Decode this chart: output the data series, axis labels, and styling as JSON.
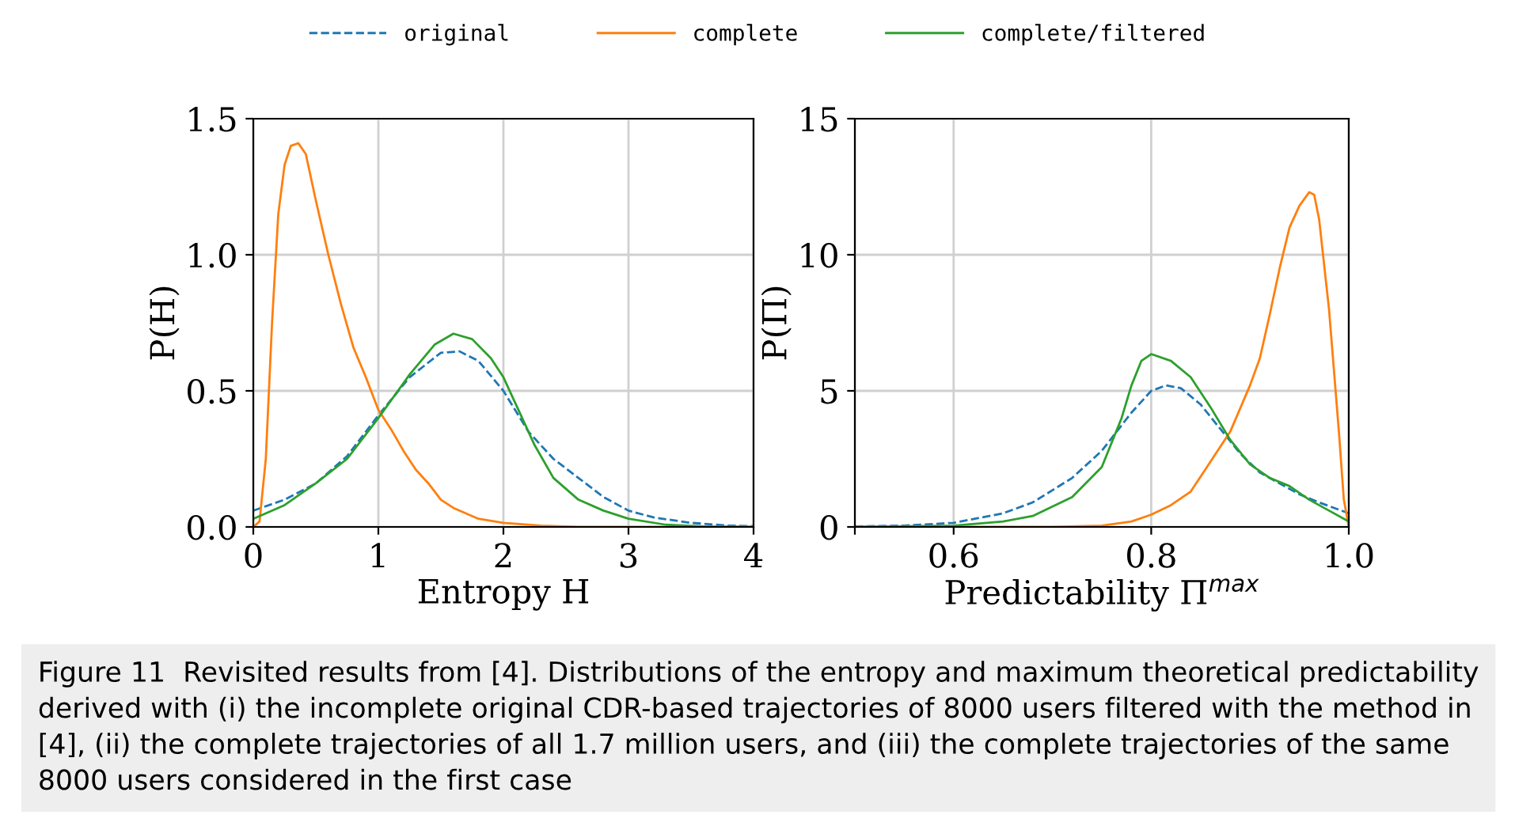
{
  "chart_data": [
    {
      "type": "line",
      "xlabel": "Entropy H",
      "ylabel": "P(H)",
      "xlim": [
        0,
        4
      ],
      "ylim": [
        0,
        1.5
      ],
      "xticks": [
        0,
        1,
        2,
        3,
        4
      ],
      "yticks": [
        {
          "value": 0,
          "label": "0.0"
        },
        {
          "value": 0.5,
          "label": "0.5"
        },
        {
          "value": 1,
          "label": "1.0"
        },
        {
          "value": 1.5,
          "label": "1.5"
        }
      ],
      "grid": true,
      "legend": "top",
      "annotations": [
        "Figure 11  Revisited results from [4]. Distributions of the entropy and maximum theoretical predictability derived with (i) the incomplete original CDR-based trajectories of 8000 users filtered with the method in [4], (ii) the complete trajectories of all 1.7 million users, and (iii) the complete trajectories of the same 8000 users considered in the first case"
      ],
      "series": [
        {
          "name": "original",
          "color": "#1f77b4",
          "line_style": "dashed",
          "x": [
            0,
            0.25,
            0.5,
            0.75,
            1.0,
            1.25,
            1.5,
            1.65,
            1.8,
            2.0,
            2.2,
            2.4,
            2.6,
            2.8,
            3.0,
            3.2,
            3.5,
            3.8,
            4
          ],
          "values": [
            0.06,
            0.1,
            0.16,
            0.26,
            0.41,
            0.55,
            0.64,
            0.645,
            0.61,
            0.5,
            0.35,
            0.25,
            0.18,
            0.11,
            0.06,
            0.035,
            0.015,
            0.005,
            0.003
          ]
        },
        {
          "name": "complete",
          "color": "#ff7f0e",
          "line_style": "solid",
          "x": [
            0,
            0.05,
            0.1,
            0.15,
            0.2,
            0.25,
            0.3,
            0.36,
            0.42,
            0.5,
            0.6,
            0.7,
            0.8,
            0.9,
            1.0,
            1.1,
            1.2,
            1.3,
            1.4,
            1.5,
            1.6,
            1.8,
            2.0,
            2.3,
            2.6,
            4
          ],
          "values": [
            0,
            0.02,
            0.25,
            0.75,
            1.15,
            1.33,
            1.4,
            1.41,
            1.37,
            1.2,
            1.0,
            0.82,
            0.66,
            0.55,
            0.43,
            0.36,
            0.28,
            0.21,
            0.16,
            0.1,
            0.07,
            0.03,
            0.015,
            0.005,
            0,
            0
          ]
        },
        {
          "name": "complete/filtered",
          "color": "#2ca02c",
          "line_style": "solid",
          "x": [
            0,
            0.25,
            0.5,
            0.75,
            1.0,
            1.25,
            1.45,
            1.6,
            1.75,
            1.9,
            2.0,
            2.1,
            2.25,
            2.4,
            2.6,
            2.8,
            3.0,
            3.3,
            3.6,
            4
          ],
          "values": [
            0.03,
            0.08,
            0.16,
            0.25,
            0.4,
            0.56,
            0.67,
            0.71,
            0.69,
            0.62,
            0.55,
            0.45,
            0.3,
            0.18,
            0.1,
            0.06,
            0.03,
            0.008,
            0.002,
            0
          ]
        }
      ]
    },
    {
      "type": "line",
      "xlabel": "Predictability Π$^{max}$",
      "ylabel": "P(Π)",
      "xlim": [
        0.5,
        1.0
      ],
      "ylim": [
        0,
        15
      ],
      "xticks": [
        {
          "value": 0.5,
          "label": null
        },
        0.6,
        0.8,
        {
          "value": 1.0,
          "label": "1.0"
        }
      ],
      "yticks": [
        0,
        5,
        10,
        15
      ],
      "grid": true,
      "series": [
        {
          "color": "#1f77b4",
          "line_style": "dashed",
          "x": [
            0.5,
            0.55,
            0.6,
            0.65,
            0.68,
            0.72,
            0.75,
            0.78,
            0.8,
            0.815,
            0.83,
            0.85,
            0.87,
            0.89,
            0.91,
            0.93,
            0.95,
            0.97,
            1.0
          ],
          "values": [
            0.02,
            0.05,
            0.15,
            0.5,
            0.9,
            1.8,
            2.8,
            4.2,
            5.0,
            5.2,
            5.1,
            4.5,
            3.6,
            2.7,
            2.0,
            1.6,
            1.2,
            0.9,
            0.5
          ]
        },
        {
          "color": "#ff7f0e",
          "line_style": "solid",
          "x": [
            0.5,
            0.7,
            0.75,
            0.78,
            0.8,
            0.82,
            0.84,
            0.86,
            0.88,
            0.9,
            0.91,
            0.92,
            0.93,
            0.94,
            0.95,
            0.96,
            0.965,
            0.97,
            0.98,
            0.99,
            0.995,
            1.0
          ],
          "values": [
            0,
            0,
            0.05,
            0.2,
            0.45,
            0.8,
            1.3,
            2.4,
            3.5,
            5.2,
            6.2,
            7.8,
            9.5,
            11,
            11.8,
            12.3,
            12.2,
            11.3,
            8.0,
            3.5,
            1.0,
            0
          ]
        },
        {
          "color": "#2ca02c",
          "line_style": "solid",
          "x": [
            0.5,
            0.6,
            0.65,
            0.68,
            0.72,
            0.75,
            0.77,
            0.78,
            0.79,
            0.8,
            0.82,
            0.84,
            0.86,
            0.88,
            0.9,
            0.92,
            0.94,
            0.96,
            0.98,
            1.0
          ],
          "values": [
            0,
            0.05,
            0.2,
            0.4,
            1.1,
            2.2,
            4.0,
            5.2,
            6.1,
            6.35,
            6.1,
            5.5,
            4.4,
            3.2,
            2.3,
            1.8,
            1.5,
            1.0,
            0.6,
            0.2
          ]
        }
      ]
    }
  ]
}
